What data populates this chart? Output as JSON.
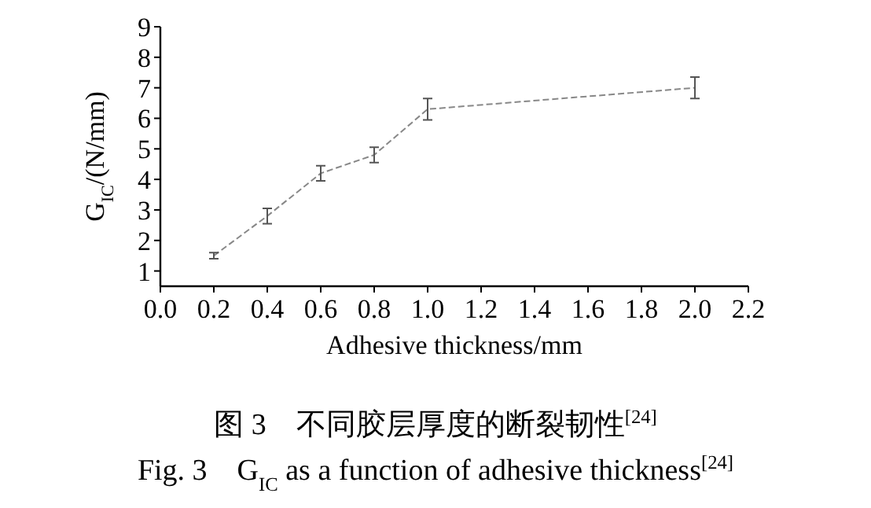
{
  "chart_data": {
    "type": "line",
    "xlabel": "Adhesive thickness/mm",
    "ylabel": "G$_{IC}$/(N/mm)",
    "x": [
      0.2,
      0.4,
      0.6,
      0.8,
      1.0,
      2.0
    ],
    "series": [
      {
        "color": "#888888",
        "values": [
          1.5,
          2.8,
          4.2,
          4.8,
          6.3,
          7.0
        ],
        "errors": [
          0.1,
          0.25,
          0.25,
          0.25,
          0.35,
          0.35
        ]
      }
    ],
    "xlim": [
      0,
      2.2
    ],
    "xticks": [
      {
        "value": 0,
        "label": "0.0"
      },
      0.2,
      0.4,
      0.6,
      0.8,
      {
        "value": 1,
        "label": "1.0"
      },
      1.2,
      1.4,
      1.6,
      1.8,
      {
        "value": 2,
        "label": "2.0"
      },
      2.2
    ],
    "ylim": [
      0.5,
      9
    ],
    "yticks": [
      1,
      2,
      3,
      4,
      5,
      6,
      7,
      8,
      9
    ],
    "line_style": "dashed",
    "grid": false,
    "annotations": [
      "图 3　不同胶层厚度的断裂韧性$^{[24]}$",
      "Fig. 3　G$_{IC}$ as a function of adhesive thickness$^{[24]}$"
    ]
  }
}
